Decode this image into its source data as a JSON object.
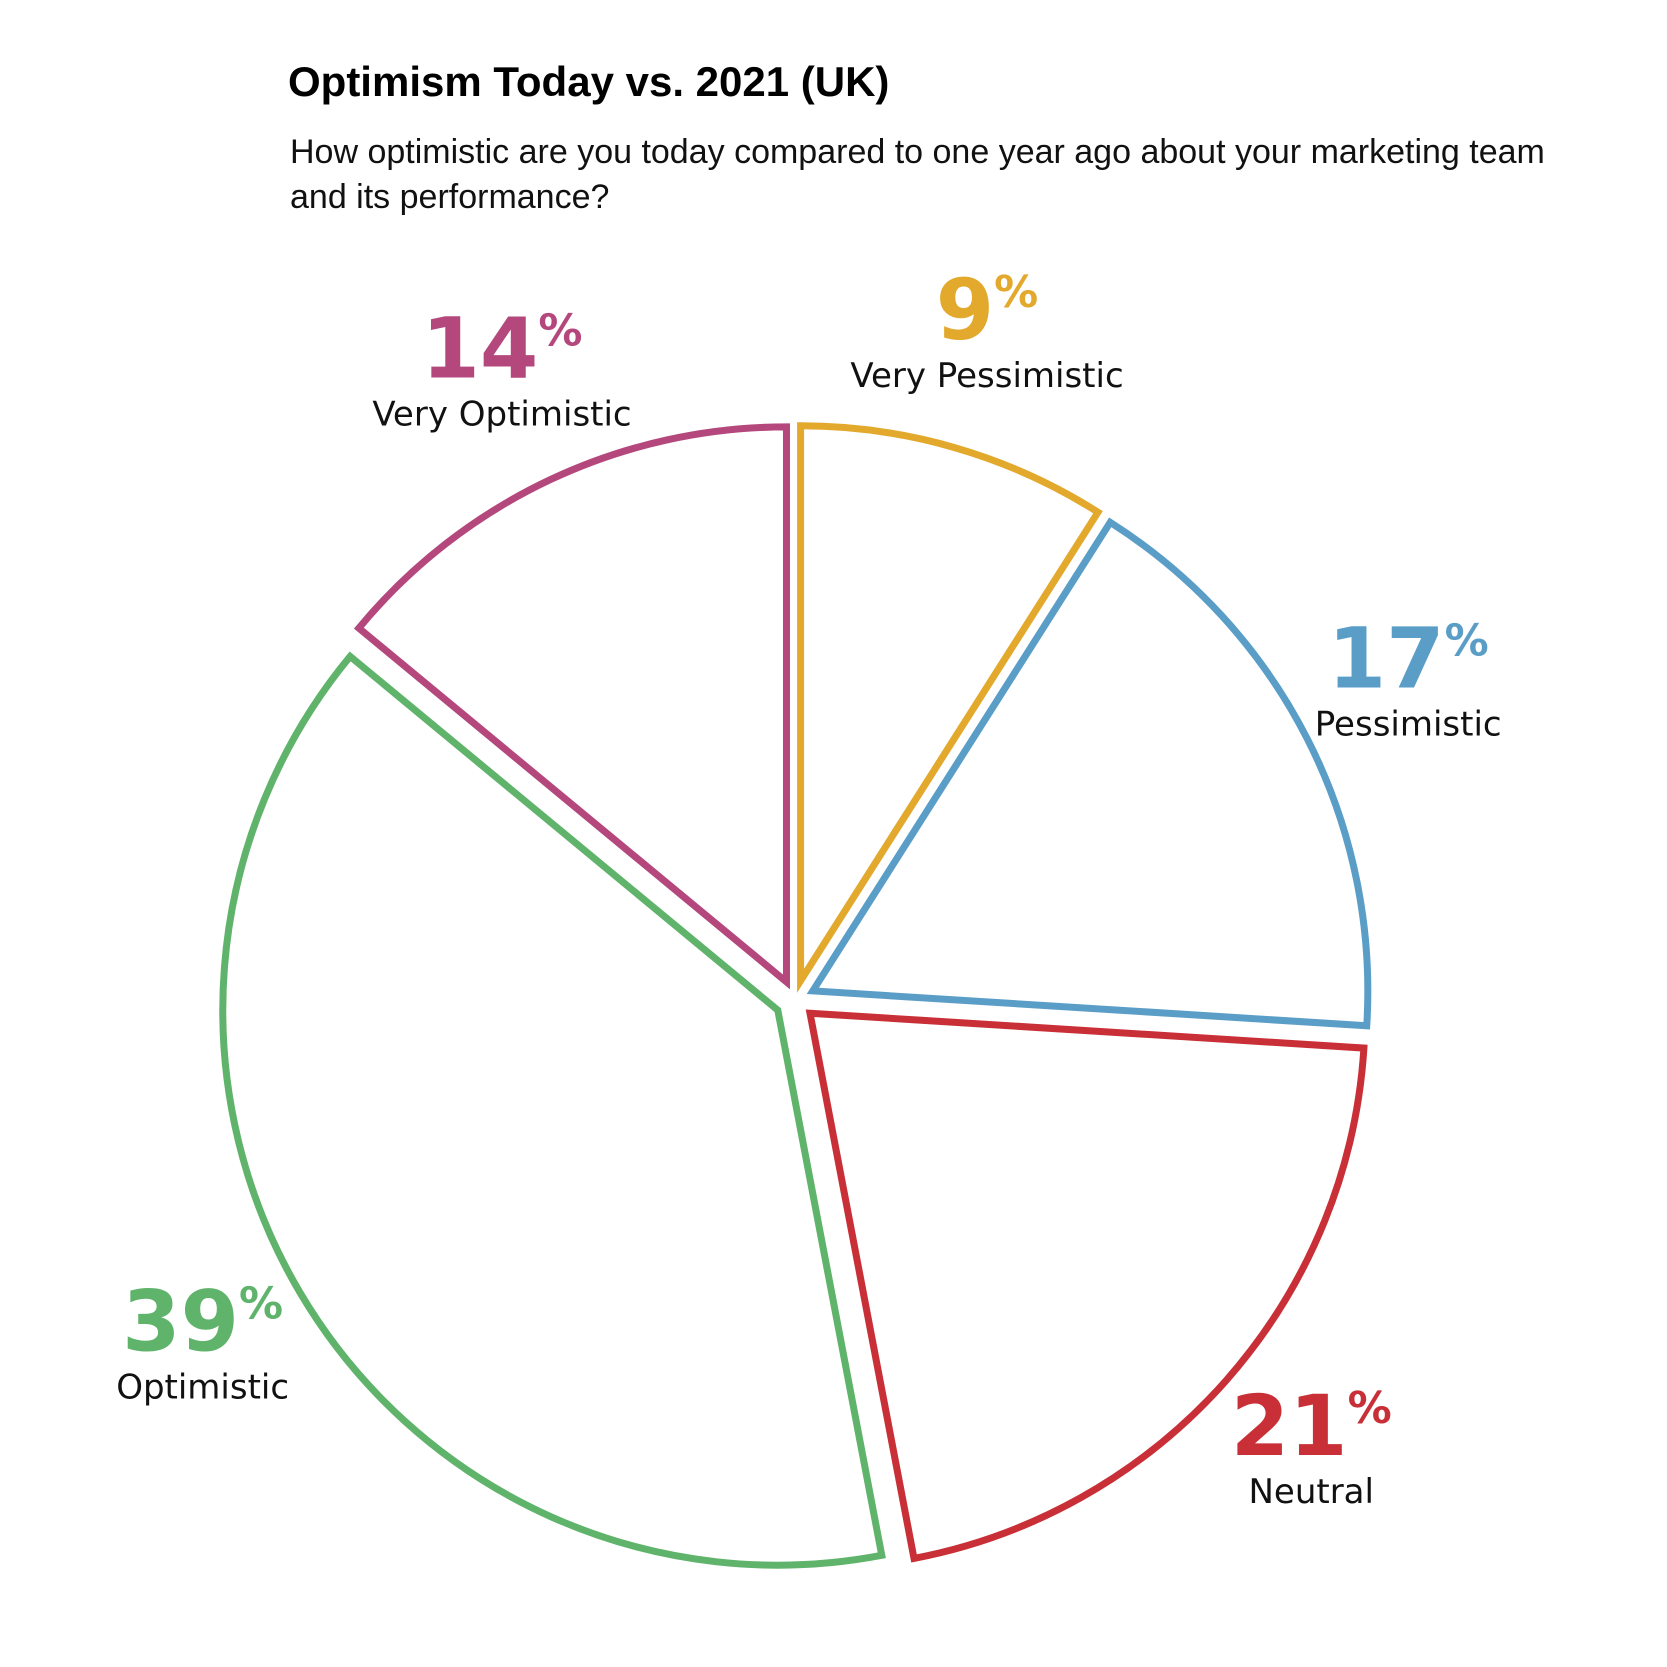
{
  "chart_data": {
    "type": "pie",
    "title": "Optimism Today vs. 2021 (UK)",
    "subtitle": "How optimistic are you today compared to one year ago about your marketing team and its performance?",
    "categories": [
      "Very Pessimistic",
      "Pessimistic",
      "Neutral",
      "Optimistic",
      "Very Optimistic"
    ],
    "values": [
      9,
      17,
      21,
      39,
      14
    ],
    "value_labels": [
      "9%",
      "17%",
      "21%",
      "39%",
      "14%"
    ],
    "colors": [
      "#e2a92c",
      "#5a9ec8",
      "#c92f36",
      "#5fb36a",
      "#b4487c"
    ]
  }
}
